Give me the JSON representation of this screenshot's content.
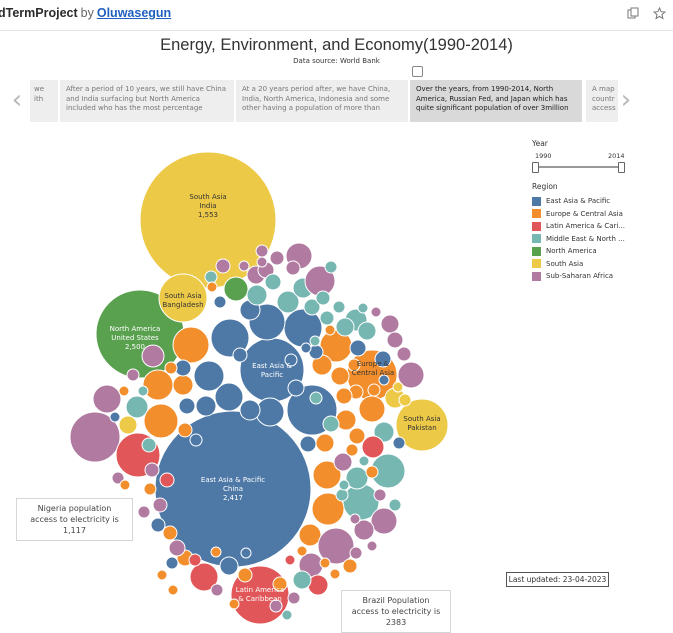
{
  "header": {
    "project": "dTermProject",
    "by": "by",
    "author": "Oluwasegun",
    "icons": [
      "copy-icon",
      "star-icon"
    ]
  },
  "dashboard": {
    "title": "Energy, Environment, and Economy(1990-2014)",
    "subtitle": "Data source: World Bank",
    "story_cards": [
      "we ith",
      "After a period of 10 years, we still have China and India surfacing but North America included who has the most percentage",
      "At a 20 years period after, we have China, India, North America, Indonesia and some other having a population of more than",
      "Over the years, from 1990-2014, North America, Russian Fed, and Japan which has quite significant population of over 3million",
      "A map countr access"
    ],
    "active_card": 3
  },
  "legend": {
    "year_label": "Year",
    "year_min": "1990",
    "year_max": "2014",
    "region_label": "Region",
    "regions": [
      {
        "name": "East Asia & Pacific",
        "color": "#4e79a7"
      },
      {
        "name": "Europe & Central Asia",
        "color": "#f28e2b"
      },
      {
        "name": "Latin America & Cari...",
        "color": "#e15759"
      },
      {
        "name": "Middle East & North ...",
        "color": "#76b7b2"
      },
      {
        "name": "North America",
        "color": "#59a14f"
      },
      {
        "name": "South Asia",
        "color": "#edc948"
      },
      {
        "name": "Sub-Saharan Africa",
        "color": "#b07aa1"
      }
    ]
  },
  "annotations": {
    "nigeria": "Nigeria population access to electricity is 1,117",
    "brazil": "Brazil Population access to electricity is 2383"
  },
  "last_updated": "Last updated: 23-04-2023",
  "chart_data": {
    "type": "packed-bubble",
    "measure": "population with access to electricity",
    "labeled_bubbles": [
      {
        "region": "South Asia",
        "country": "India",
        "value": 1553
      },
      {
        "region": "East Asia & Pacific",
        "country": "China",
        "value": 2417
      },
      {
        "region": "North America",
        "country": "United States",
        "value": 2500
      },
      {
        "region": "South Asia",
        "country": "Bangladesh",
        "value": null
      },
      {
        "region": "South Asia",
        "country": "Pakistan",
        "value": null
      },
      {
        "region": "East Asia & Pacific",
        "country": "Pacific",
        "value": null
      },
      {
        "region": "Europe & Central Asia",
        "country": "Central Asia",
        "value": null
      },
      {
        "region": "Latin America & Caribbean",
        "country": "Caribbean",
        "value": null
      }
    ]
  }
}
